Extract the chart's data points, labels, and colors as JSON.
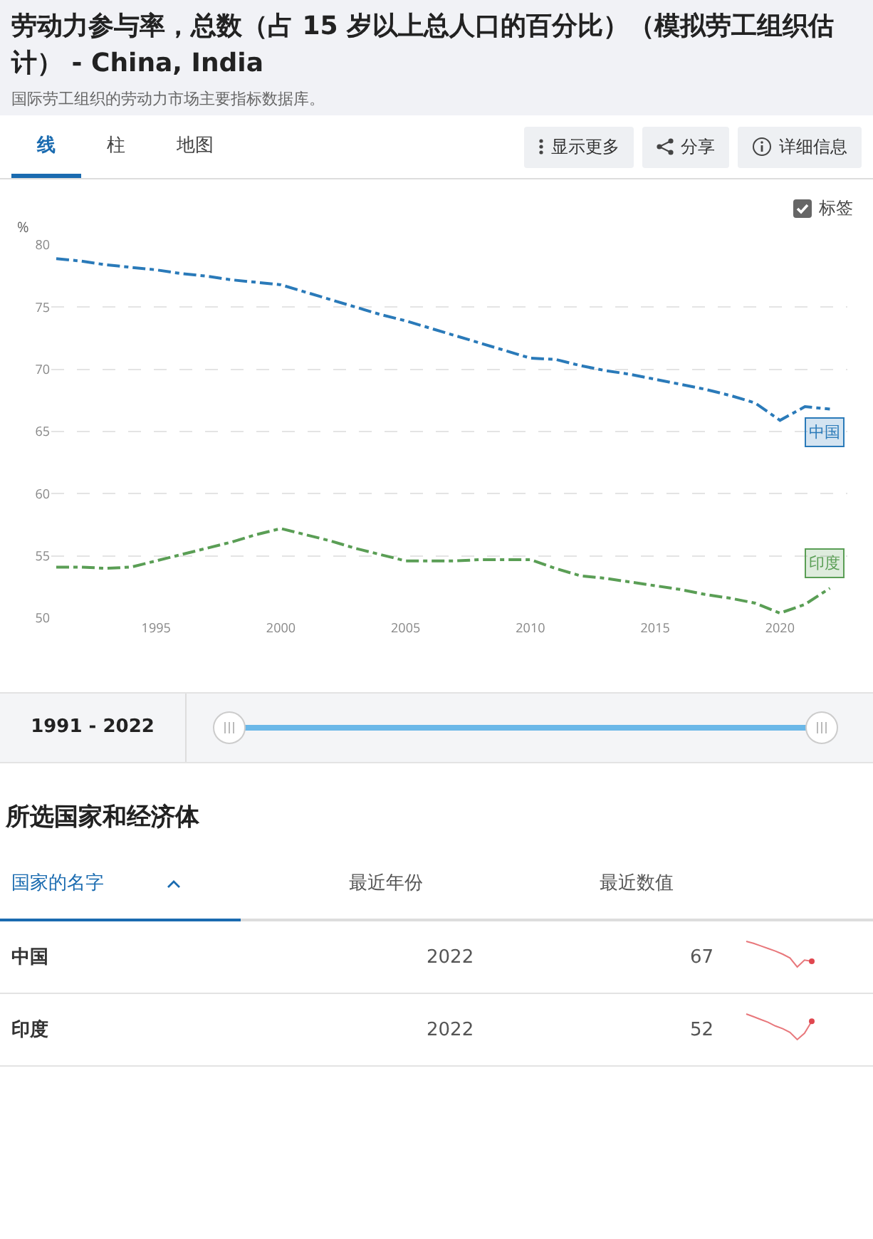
{
  "chart_data": {
    "type": "line",
    "title": "劳动力参与率，总数（占 15 岁以上总人口的百分比）（模拟劳工组织估计） - China, India",
    "ylabel": "%",
    "x": [
      1991,
      1992,
      1993,
      1994,
      1995,
      1996,
      1997,
      1998,
      1999,
      2000,
      2001,
      2002,
      2003,
      2004,
      2005,
      2006,
      2007,
      2008,
      2009,
      2010,
      2011,
      2012,
      2013,
      2014,
      2015,
      2016,
      2017,
      2018,
      2019,
      2020,
      2021,
      2022
    ],
    "series": [
      {
        "name": "中国",
        "color": "#2a7ab9",
        "values": [
          78.9,
          78.7,
          78.4,
          78.2,
          78.0,
          77.7,
          77.5,
          77.2,
          77.0,
          76.8,
          76.2,
          75.6,
          75.0,
          74.4,
          73.9,
          73.3,
          72.7,
          72.1,
          71.5,
          70.9,
          70.8,
          70.3,
          69.9,
          69.6,
          69.2,
          68.8,
          68.4,
          67.9,
          67.3,
          65.9,
          67.0,
          66.8
        ]
      },
      {
        "name": "印度",
        "color": "#5a9e55",
        "values": [
          54.1,
          54.1,
          54.0,
          54.1,
          54.6,
          55.1,
          55.6,
          56.1,
          56.7,
          57.2,
          56.7,
          56.2,
          55.6,
          55.1,
          54.6,
          54.6,
          54.6,
          54.7,
          54.7,
          54.7,
          54.0,
          53.4,
          53.2,
          52.9,
          52.6,
          52.3,
          51.9,
          51.6,
          51.2,
          50.4,
          51.1,
          52.4
        ]
      }
    ],
    "xlim": [
      1990.8,
      2022.7
    ],
    "xticks": [
      1995,
      2000,
      2005,
      2010,
      2015,
      2020
    ],
    "ylim": [
      50,
      80
    ],
    "yticks": [
      50,
      55,
      60,
      65,
      70,
      75,
      80
    ],
    "grid": "y",
    "legend": false,
    "marker": "none",
    "line_style": "dashed",
    "annotations": [
      "国际劳工组织的劳动力市场主要指标数据库。",
      "线",
      "柱",
      "地图",
      "显示更多",
      "分享",
      "详细信息",
      "标签",
      "1991 - 2022",
      "所选国家和经济体",
      "国家的名字",
      "最近年份",
      "最近数值",
      "中国",
      "2022",
      "67",
      "印度",
      "2022",
      "52"
    ]
  }
}
